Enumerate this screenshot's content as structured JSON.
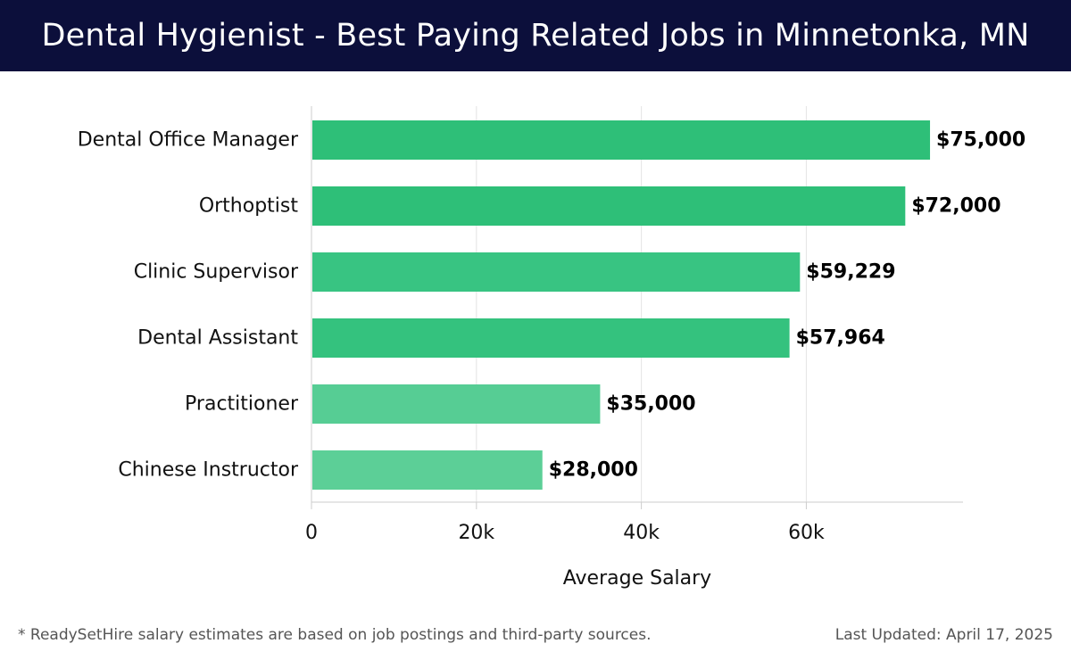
{
  "header": {
    "title": "Dental Hygienist - Best Paying Related Jobs in Minnetonka, MN"
  },
  "chart_data": {
    "type": "bar",
    "orientation": "horizontal",
    "categories": [
      "Dental Office Manager",
      "Orthoptist",
      "Clinic Supervisor",
      "Dental Assistant",
      "Practitioner",
      "Chinese Instructor"
    ],
    "values": [
      75000,
      72000,
      59229,
      57964,
      35000,
      28000
    ],
    "value_labels": [
      "$75,000",
      "$72,000",
      "$59,229",
      "$57,964",
      "$35,000",
      "$28,000"
    ],
    "bar_colors": [
      "#2ebf78",
      "#2ebf78",
      "#38c482",
      "#34c27e",
      "#56cd94",
      "#5ccf97"
    ],
    "xlabel": "Average Salary",
    "ylabel": "",
    "xlim": [
      0,
      79000
    ],
    "xticks": [
      0,
      20000,
      40000,
      60000
    ],
    "xtick_labels": [
      "0",
      "20k",
      "40k",
      "60k"
    ],
    "grid": true
  },
  "footer": {
    "footnote": "* ReadySetHire salary estimates are based on job postings and third-party sources.",
    "updated": "Last Updated: April 17, 2025"
  },
  "colors": {
    "header_bg": "#0c0f3b",
    "grid": "#e4e4e4",
    "axis": "#cccccc"
  }
}
